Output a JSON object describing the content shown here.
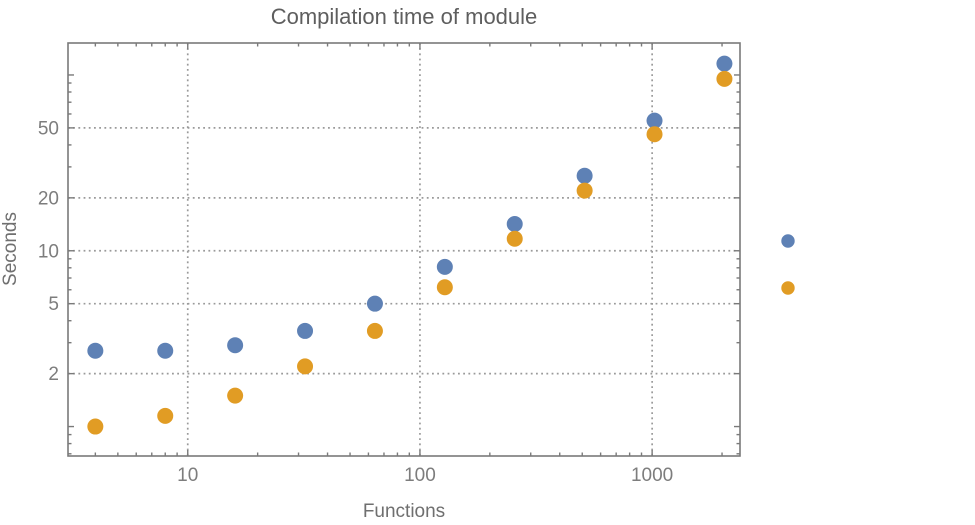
{
  "chart_data": {
    "type": "scatter",
    "title": "Compilation time of module",
    "xlabel": "Functions",
    "ylabel": "Seconds",
    "x_scale": "log",
    "y_scale": "log",
    "x": [
      4,
      8,
      16,
      32,
      64,
      128,
      256,
      512,
      1024,
      2048
    ],
    "series": [
      {
        "key": "blue",
        "color": "#5e81b5",
        "values": [
          2.7,
          2.7,
          2.9,
          3.5,
          5.0,
          8.1,
          14.2,
          26.7,
          55,
          116
        ]
      },
      {
        "key": "orange",
        "color": "#e19c24",
        "values": [
          1.0,
          1.15,
          1.5,
          2.2,
          3.5,
          6.2,
          11.7,
          22,
          46,
          95
        ]
      }
    ],
    "xlim": [
      3.05,
      2390
    ],
    "ylim": [
      0.68,
      152
    ],
    "x_tick_labels": [
      "10",
      "100",
      "1000"
    ],
    "x_tick_values": [
      10,
      100,
      1000
    ],
    "y_tick_labels": [
      "2",
      "5",
      "10",
      "20",
      "50"
    ],
    "y_tick_values": [
      2,
      5,
      10,
      20,
      50
    ],
    "grid": {
      "on": true,
      "style": "dotted",
      "color": "#9a9a9a",
      "x_values": [
        10,
        100,
        1000
      ],
      "y_values": [
        2,
        5,
        10,
        20,
        50
      ]
    },
    "legend": {
      "position": "outside-right",
      "markers": [
        {
          "key": "blue",
          "color": "#5e81b5",
          "label": ""
        },
        {
          "key": "orange",
          "color": "#e19c24",
          "label": ""
        }
      ]
    },
    "colors": {
      "background": "#ffffff",
      "frame": "#7a7a7a",
      "tick": "#7a7a7a",
      "tick_label": "#7d7d7d",
      "title": "#5e5e5e",
      "axis_label": "#6f6f6f",
      "grid": "#9a9a9a"
    }
  }
}
